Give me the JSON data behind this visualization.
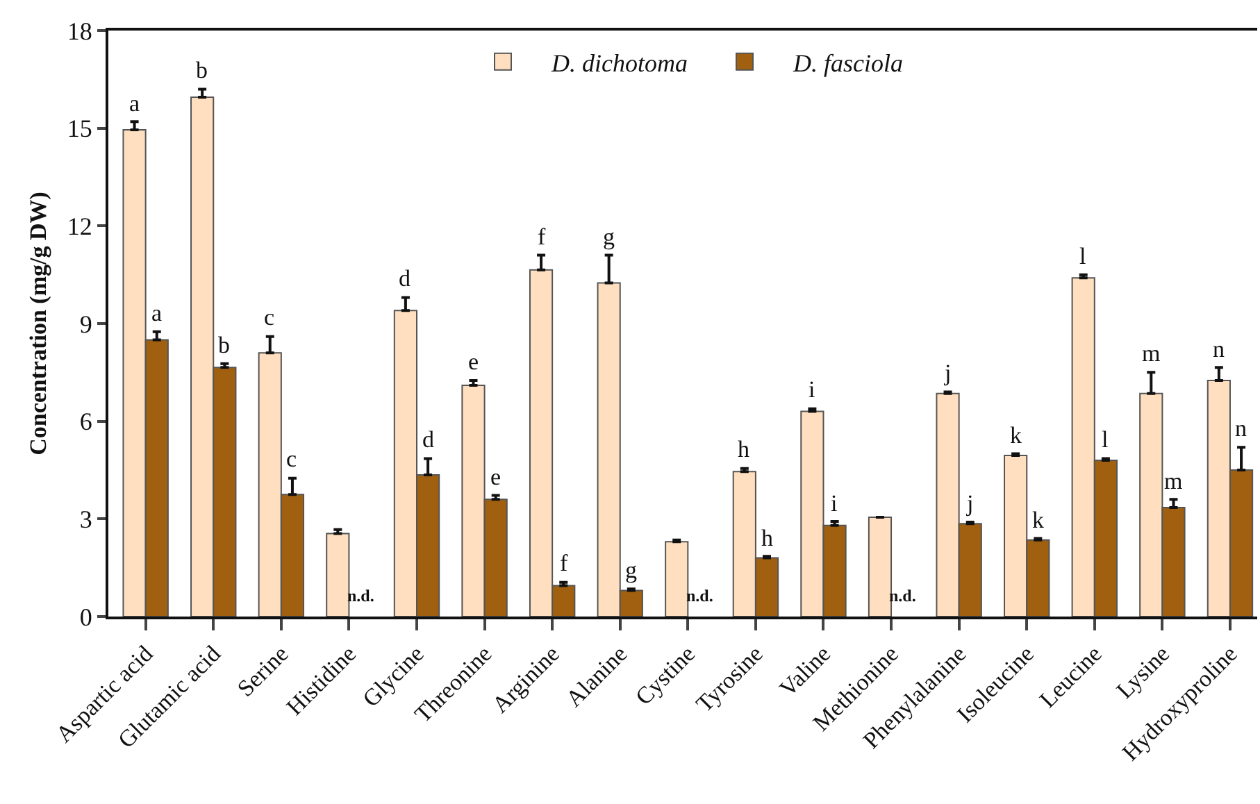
{
  "chart_data": {
    "type": "bar",
    "ylabel": "Concentration (mg/g DW)",
    "categories": [
      "Aspartic acid",
      "Glutamic acid",
      "Serine",
      "Histidine",
      "Glycine",
      "Threonine",
      "Arginine",
      "Alanine",
      "Cystine",
      "Tyrosine",
      "Valine",
      "Methionine",
      "Phenylalanine",
      "Isoleucine",
      "Leucine",
      "Lysine",
      "Hydroxyproline"
    ],
    "series": [
      {
        "name": "D. dichotoma",
        "color": "#ffdfbf",
        "values": [
          14.95,
          15.95,
          8.1,
          2.55,
          9.4,
          7.1,
          10.65,
          10.25,
          2.3,
          4.45,
          6.3,
          3.05,
          6.85,
          4.95,
          10.4,
          6.85,
          7.25
        ],
        "errors": [
          [
            14.95,
            15.2
          ],
          [
            15.95,
            16.2
          ],
          [
            8.1,
            8.6
          ],
          [
            2.55,
            2.67
          ],
          [
            9.4,
            9.8
          ],
          [
            7.1,
            7.25
          ],
          [
            10.65,
            11.1
          ],
          [
            10.25,
            11.1
          ],
          [
            2.3,
            2.35
          ],
          [
            4.45,
            4.55
          ],
          [
            6.3,
            6.38
          ],
          null,
          [
            6.85,
            6.9
          ],
          [
            4.95,
            5.0
          ],
          [
            10.4,
            10.5
          ],
          [
            6.85,
            7.5
          ],
          [
            7.25,
            7.65
          ]
        ],
        "value_labels": [
          "a",
          "b",
          "c",
          null,
          "d",
          "e",
          "f",
          "g",
          null,
          "h",
          "i",
          null,
          "j",
          "k",
          "l",
          "m",
          "n"
        ]
      },
      {
        "name": "D. fasciola",
        "color": "#a0600f",
        "values": [
          8.5,
          7.65,
          3.75,
          null,
          4.35,
          3.6,
          0.95,
          0.8,
          null,
          1.8,
          2.8,
          null,
          2.85,
          2.35,
          4.8,
          3.35,
          4.5
        ],
        "errors": [
          [
            8.5,
            8.75
          ],
          [
            7.65,
            7.77
          ],
          [
            3.75,
            4.25
          ],
          null,
          [
            4.35,
            4.85
          ],
          [
            3.6,
            3.72
          ],
          [
            0.95,
            1.05
          ],
          [
            0.8,
            0.85
          ],
          null,
          [
            1.8,
            1.85
          ],
          [
            2.8,
            2.92
          ],
          null,
          [
            2.85,
            2.9
          ],
          [
            2.35,
            2.4
          ],
          [
            4.8,
            4.85
          ],
          [
            3.35,
            3.6
          ],
          [
            4.5,
            5.2
          ]
        ],
        "value_labels": [
          "a",
          "b",
          "c",
          "n.d.",
          "d",
          "e",
          "f",
          "g",
          "n.d.",
          "h",
          "i",
          "n.d.",
          "j",
          "k",
          "l",
          "m",
          "n"
        ]
      }
    ],
    "ylim": [
      0,
      18
    ],
    "yticks": [
      0,
      3,
      6,
      9,
      12,
      15,
      18
    ],
    "legend": "top",
    "grid": false
  }
}
